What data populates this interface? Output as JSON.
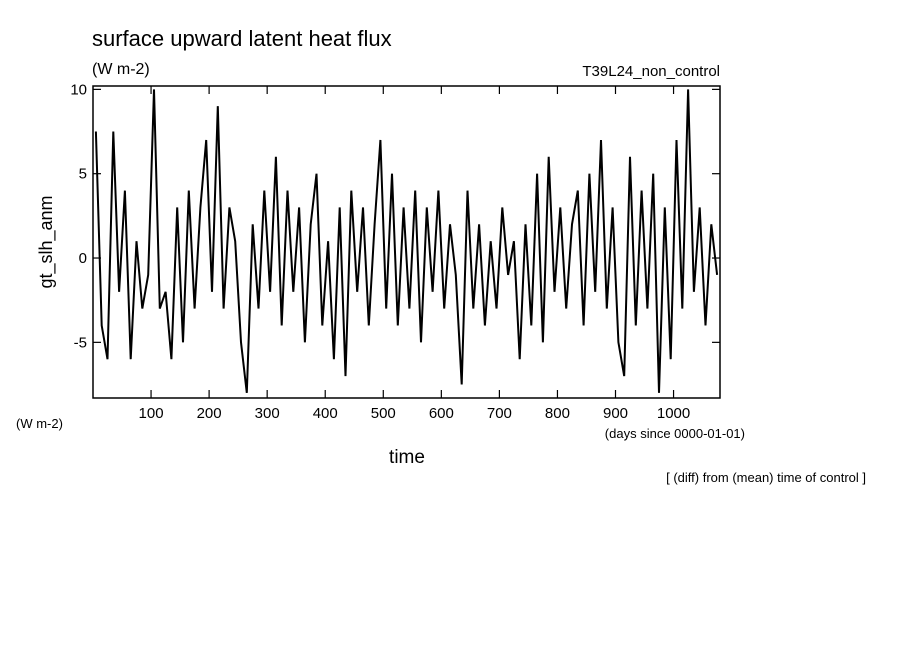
{
  "chart_data": {
    "type": "line",
    "title": "surface upward latent heat flux",
    "units": "(W m-2)",
    "experiment": "T39L24_non_control",
    "ylabel": "gt_slh_anm",
    "yunits": "(W m-2)",
    "xlabel": "time",
    "xunits": "(days since 0000-01-01)",
    "note": "[ (diff) from (mean) time of control ]",
    "color": "#000000",
    "xlim": [
      0,
      1080
    ],
    "ylim": [
      -8.3,
      10.2
    ],
    "xticks": [
      100,
      200,
      300,
      400,
      500,
      600,
      700,
      800,
      900,
      1000
    ],
    "yticks": [
      -5,
      0,
      5,
      10
    ],
    "x": [
      5,
      15,
      25,
      35,
      45,
      55,
      65,
      75,
      85,
      95,
      105,
      115,
      125,
      135,
      145,
      155,
      165,
      175,
      185,
      195,
      205,
      215,
      225,
      235,
      245,
      255,
      265,
      275,
      285,
      295,
      305,
      315,
      325,
      335,
      345,
      355,
      365,
      375,
      385,
      395,
      405,
      415,
      425,
      435,
      445,
      455,
      465,
      475,
      485,
      495,
      505,
      515,
      525,
      535,
      545,
      555,
      565,
      575,
      585,
      595,
      605,
      615,
      625,
      635,
      645,
      655,
      665,
      675,
      685,
      695,
      705,
      715,
      725,
      735,
      745,
      755,
      765,
      775,
      785,
      795,
      805,
      815,
      825,
      835,
      845,
      855,
      865,
      875,
      885,
      895,
      905,
      915,
      925,
      935,
      945,
      955,
      965,
      975,
      985,
      995,
      1005,
      1015,
      1025,
      1035,
      1045,
      1055,
      1065,
      1075
    ],
    "values": [
      7.5,
      -4,
      -6,
      7.5,
      -2,
      4,
      -6,
      1,
      -3,
      -1,
      10,
      -3,
      -2,
      -6,
      3,
      -5,
      4,
      -3,
      3,
      7,
      -2,
      9,
      -3,
      3,
      1,
      -5,
      -8,
      2,
      -3,
      4,
      -2,
      6,
      -4,
      4,
      -2,
      3,
      -5,
      2,
      5,
      -4,
      1,
      -6,
      3,
      -7,
      4,
      -2,
      3,
      -4,
      2,
      7,
      -3,
      5,
      -4,
      3,
      -3,
      4,
      -5,
      3,
      -2,
      4,
      -3,
      2,
      -1,
      -7.5,
      4,
      -3,
      2,
      -4,
      1,
      -3,
      3,
      -1,
      1,
      -6,
      2,
      -4,
      5,
      -5,
      6,
      -2,
      3,
      -3,
      2,
      4,
      -4,
      5,
      -2,
      7,
      -3,
      3,
      -5,
      -7,
      6,
      -4,
      4,
      -3,
      5,
      -8,
      3,
      -6,
      7,
      -3,
      10,
      -2,
      3,
      -4,
      2,
      -1
    ]
  }
}
